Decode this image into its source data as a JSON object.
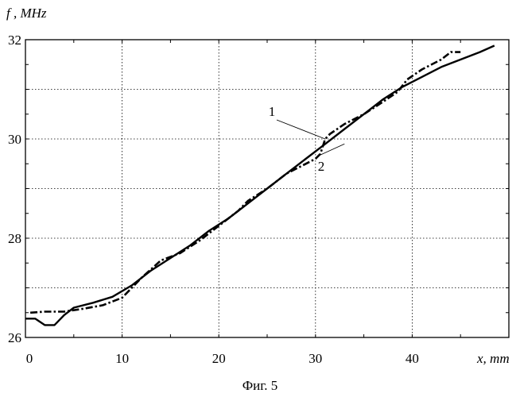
{
  "chart_data": {
    "type": "line",
    "title": "",
    "xlabel": "x, mm",
    "ylabel": "f , MHz",
    "caption": "Фиг. 5",
    "xlim": [
      0,
      50
    ],
    "ylim": [
      26,
      32
    ],
    "x_ticks": [
      "0",
      "10",
      "20",
      "30",
      "40"
    ],
    "y_ticks": [
      "26",
      "28",
      "30",
      "32"
    ],
    "grid": true,
    "legend": "none",
    "series": [
      {
        "name": "1",
        "style": "dash-dot",
        "color": "#000000",
        "x": [
          0.5,
          2,
          4,
          6,
          8,
          10,
          12,
          14,
          16,
          18,
          20,
          22,
          23,
          25,
          27,
          29,
          30,
          30.5,
          31,
          31.5,
          33,
          35,
          37,
          38.5,
          39.5,
          41,
          43,
          44,
          45
        ],
        "y": [
          26.5,
          26.52,
          26.52,
          26.58,
          26.65,
          26.8,
          27.2,
          27.55,
          27.7,
          27.95,
          28.25,
          28.55,
          28.75,
          29.0,
          29.3,
          29.5,
          29.6,
          29.7,
          30.0,
          30.1,
          30.3,
          30.5,
          30.75,
          30.95,
          31.2,
          31.4,
          31.6,
          31.75,
          31.75
        ]
      },
      {
        "name": "2",
        "style": "solid",
        "color": "#000000",
        "x": [
          0,
          1,
          2,
          3,
          4,
          5,
          7,
          9,
          11,
          13,
          15,
          17,
          19,
          21,
          23,
          25,
          27,
          29,
          31,
          33,
          35,
          37,
          39,
          41,
          43,
          45,
          47,
          48.5
        ],
        "y": [
          26.38,
          26.38,
          26.25,
          26.25,
          26.45,
          26.6,
          26.7,
          26.82,
          27.05,
          27.35,
          27.6,
          27.85,
          28.15,
          28.4,
          28.7,
          29.0,
          29.3,
          29.6,
          29.9,
          30.2,
          30.5,
          30.8,
          31.05,
          31.25,
          31.45,
          31.6,
          31.75,
          31.88
        ]
      }
    ],
    "annotations": [
      {
        "text": "1",
        "points_to": [
          31,
          30.0
        ]
      },
      {
        "text": "2",
        "points_to": [
          33,
          29.9
        ]
      }
    ]
  }
}
